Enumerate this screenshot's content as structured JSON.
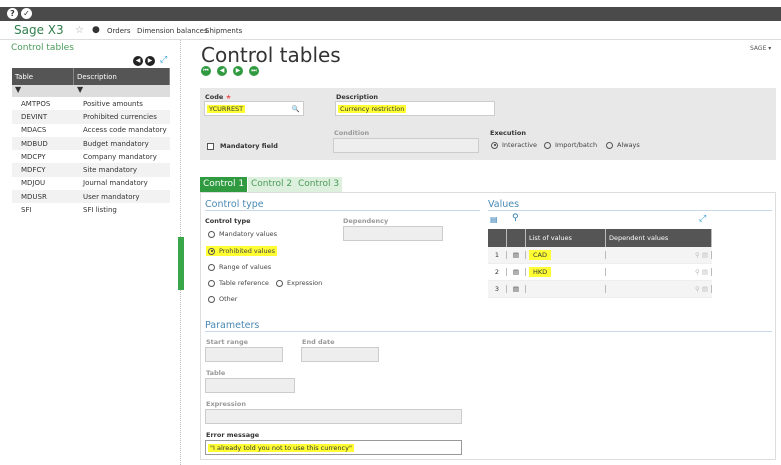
{
  "topbar": {
    "help_icon": "?",
    "check_icon": "✓"
  },
  "navbar": {
    "brand": "Sage X3",
    "links": [
      "Orders",
      "Dimension balances",
      "Shipments"
    ],
    "user_menu": "SAGE ▾"
  },
  "sidebar": {
    "title": "Control tables",
    "columns": [
      "Table",
      "Description"
    ],
    "rows": [
      {
        "table": "AMTPOS",
        "description": "Positive amounts"
      },
      {
        "table": "DEVINT",
        "description": "Prohibited currencies"
      },
      {
        "table": "MDACS",
        "description": "Access code mandatory"
      },
      {
        "table": "MDBUD",
        "description": "Budget mandatory"
      },
      {
        "table": "MDCPY",
        "description": "Company mandatory"
      },
      {
        "table": "MDFCY",
        "description": "Site mandatory"
      },
      {
        "table": "MDJOU",
        "description": "Journal mandatory"
      },
      {
        "table": "MDUSR",
        "description": "User mandatory"
      },
      {
        "table": "SFI",
        "description": "SFI listing"
      }
    ]
  },
  "main": {
    "title": "Control tables",
    "header": {
      "code_label": "Code",
      "required_mark": "★",
      "code_value": "YCURREST",
      "description_label": "Description",
      "description_value": "Currency restriction",
      "condition_label": "Condition",
      "mandatory_label": "Mandatory field",
      "execution_label": "Execution",
      "execution_options": [
        "Interactive",
        "Import/batch",
        "Always"
      ],
      "execution_selected": "Interactive"
    },
    "tabs": [
      "Control 1",
      "Control 2",
      "Control 3"
    ],
    "control_type": {
      "section": "Control type",
      "label": "Control type",
      "dependency_label": "Dependency",
      "options": [
        "Mandatory values",
        "Prohibited values",
        "Range of values",
        "Table reference",
        "Expression",
        "Other"
      ],
      "selected": "Prohibited values"
    },
    "values": {
      "section": "Values",
      "columns": [
        "List of values",
        "Dependent values"
      ],
      "rows": [
        {
          "n": "1",
          "value": "CAD"
        },
        {
          "n": "2",
          "value": "HKD"
        },
        {
          "n": "3",
          "value": ""
        }
      ]
    },
    "parameters": {
      "section": "Parameters",
      "start_range_label": "Start range",
      "end_date_label": "End date",
      "table_label": "Table",
      "expression_label": "Expression",
      "error_message_label": "Error message",
      "error_message_value": "\"I already told you not to use this currency\""
    }
  },
  "colors": {
    "accent": "#2f9a3f",
    "highlight": "#ffff33",
    "header_dark": "#555555"
  }
}
